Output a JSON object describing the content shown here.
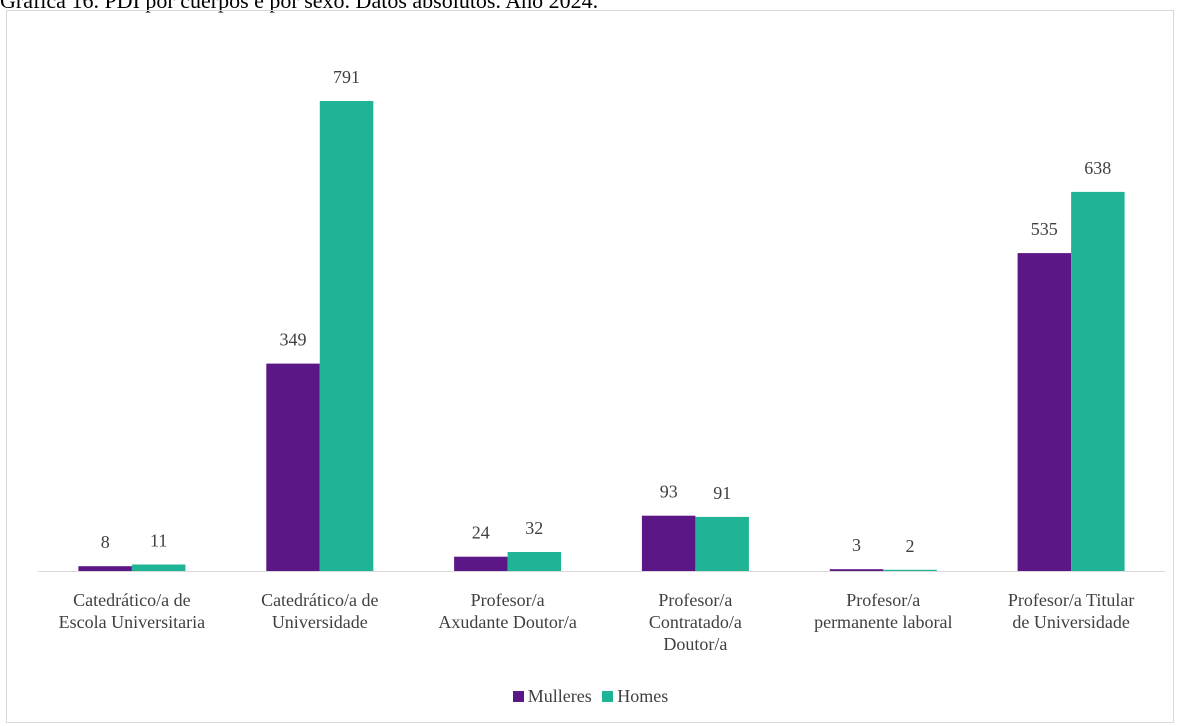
{
  "title": "Gráfica 16. PDI por cuerpos e por sexo. Datos absolutos. Ano 2024.",
  "colors": {
    "mulleres": "#5b1785",
    "homes": "#1fb496",
    "axis": "#d9d9d9",
    "text": "#404040"
  },
  "chart_data": {
    "type": "bar",
    "categories": [
      [
        "Catedrático/a de",
        "Escola Universitaria"
      ],
      [
        "Catedrático/a de",
        "Universidade"
      ],
      [
        "Profesor/a",
        "Axudante Doutor/a"
      ],
      [
        "Profesor/a",
        "Contratado/a",
        "Doutor/a"
      ],
      [
        "Profesor/a",
        "permanente laboral"
      ],
      [
        "Profesor/a Titular",
        "de Universidade"
      ]
    ],
    "series": [
      {
        "name": "Mulleres",
        "values": [
          8,
          349,
          24,
          93,
          3,
          535
        ]
      },
      {
        "name": "Homes",
        "values": [
          11,
          791,
          32,
          91,
          2,
          638
        ]
      }
    ],
    "ylim": [
      0,
      800
    ],
    "grid": false,
    "legend_position": "bottom"
  }
}
